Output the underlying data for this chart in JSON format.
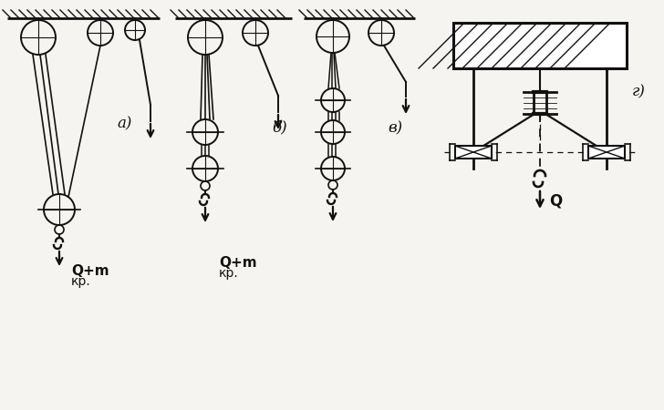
{
  "bg_color": "#f5f4f0",
  "line_color": "#111111",
  "label_a": "а)",
  "label_b": "б)",
  "label_c": "в)",
  "label_d": "г)",
  "text_q1": "Q+m",
  "text_kp1": "кр.",
  "text_q2": "Q+m",
  "text_kp2": "кр.",
  "text_q3": "Q",
  "font_size_label": 12,
  "font_size_q": 11
}
